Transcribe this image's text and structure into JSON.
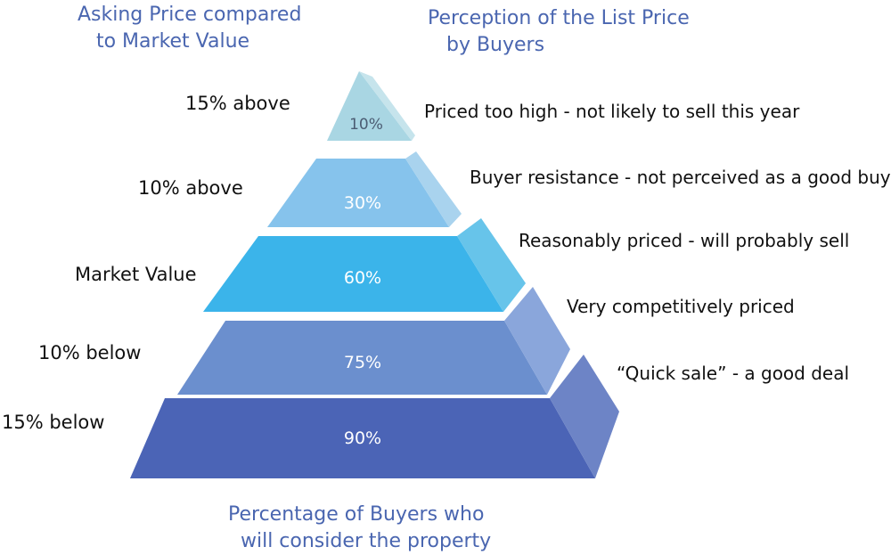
{
  "headers": {
    "left": "Asking Price compared\n   to Market Value",
    "right": "Perception of the List Price\n   by Buyers",
    "bottom": "Percentage of Buyers who\n  will consider the property"
  },
  "tiers": [
    {
      "asking": "15% above",
      "percent": "10%",
      "perception": "Priced too high - not likely to sell this year",
      "color": "#a9d6e3"
    },
    {
      "asking": "10% above",
      "percent": "30%",
      "perception": "Buyer resistance - not perceived as a good buy",
      "color": "#86c3ec"
    },
    {
      "asking": "Market Value",
      "percent": "60%",
      "perception": "Reasonably priced - will probably sell",
      "color": "#3bb4ea"
    },
    {
      "asking": "10% below",
      "percent": "75%",
      "perception": "Very competitively priced",
      "color": "#6b8fce"
    },
    {
      "asking": "15% below",
      "percent": "90%",
      "perception": "“Quick sale” - a good deal",
      "color": "#4b64b6"
    }
  ]
}
